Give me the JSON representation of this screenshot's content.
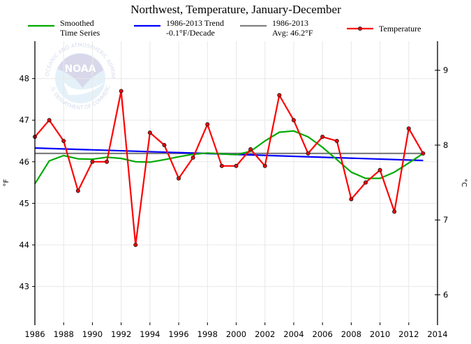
{
  "chart_data": {
    "type": "line",
    "title": "Northwest, Temperature, January-December",
    "xlabel": "",
    "ylabel": "°F",
    "ylabel_right": "°C",
    "xlim": [
      1986,
      2014
    ],
    "ylim": [
      42.07,
      48.9
    ],
    "grid": true,
    "x_ticks": [
      1986,
      1988,
      1990,
      1992,
      1994,
      1996,
      1998,
      2000,
      2002,
      2004,
      2006,
      2008,
      2010,
      2012,
      2014
    ],
    "x_tick_labels": [
      "1986",
      "1988",
      "1990",
      "1992",
      "1994",
      "1996",
      "1998",
      "2000",
      "2002",
      "2004",
      "2006",
      "2008",
      "2010",
      "2012",
      "2014"
    ],
    "y_ticks": [
      43,
      44,
      45,
      46,
      47,
      48
    ],
    "y_tick_labels": [
      "43",
      "44",
      "45",
      "46",
      "47",
      "48"
    ],
    "y_right_ticks": [
      6,
      7,
      8,
      9
    ],
    "y_right_tick_labels": [
      "6",
      "7",
      "8",
      "9"
    ],
    "x": [
      1986,
      1987,
      1988,
      1989,
      1990,
      1991,
      1992,
      1993,
      1994,
      1995,
      1996,
      1997,
      1998,
      1999,
      2000,
      2001,
      2002,
      2003,
      2004,
      2005,
      2006,
      2007,
      2008,
      2009,
      2010,
      2011,
      2012,
      2013
    ],
    "series": [
      {
        "name": "Temperature",
        "color": "#ff0000",
        "markers": true,
        "values": [
          46.6,
          47.0,
          46.5,
          45.3,
          46.0,
          46.0,
          47.7,
          44.0,
          46.7,
          46.4,
          45.6,
          46.1,
          46.9,
          45.9,
          45.9,
          46.3,
          45.9,
          47.6,
          47.0,
          46.2,
          46.6,
          46.5,
          45.1,
          45.5,
          45.8,
          44.8,
          46.8,
          46.2
        ]
      },
      {
        "name": "Smoothed Time Series",
        "color": "#00aa00",
        "markers": false,
        "values": [
          45.47,
          46.02,
          46.15,
          46.07,
          46.06,
          46.11,
          46.08,
          46.0,
          45.99,
          46.05,
          46.12,
          46.18,
          46.21,
          46.19,
          46.17,
          46.25,
          46.5,
          46.71,
          46.74,
          46.6,
          46.35,
          46.05,
          45.75,
          45.6,
          45.6,
          45.75,
          45.97,
          46.2
        ]
      },
      {
        "name": "1986-2013 Trend -0.1°F/Decade",
        "color": "#0000ff",
        "markers": false,
        "x": [
          1986,
          2013
        ],
        "values": [
          46.33,
          46.03
        ]
      },
      {
        "name": "1986-2013 Avg: 46.2°F",
        "color": "#808080",
        "markers": false,
        "x": [
          1986,
          2013
        ],
        "values": [
          46.2,
          46.2
        ]
      }
    ],
    "legend": {
      "placement": "top",
      "entries": [
        {
          "line1": "Smoothed",
          "line2": "Time Series",
          "color": "#00aa00",
          "marker": false
        },
        {
          "line1": "1986-2013 Trend",
          "line2": "-0.1°F/Decade",
          "color": "#0000ff",
          "marker": false
        },
        {
          "line1": "1986-2013",
          "line2": "Avg: 46.2°F",
          "color": "#808080",
          "marker": false
        },
        {
          "line1": "Temperature",
          "line2": "",
          "color": "#ff0000",
          "marker": true
        }
      ]
    },
    "watermark": {
      "center_text": "NOAA",
      "ring_top": "NATIONAL OCEANIC AND ATMOSPHERIC ADMINISTRATION",
      "ring_bottom": "U.S. DEPARTMENT OF COMMERCE"
    }
  }
}
